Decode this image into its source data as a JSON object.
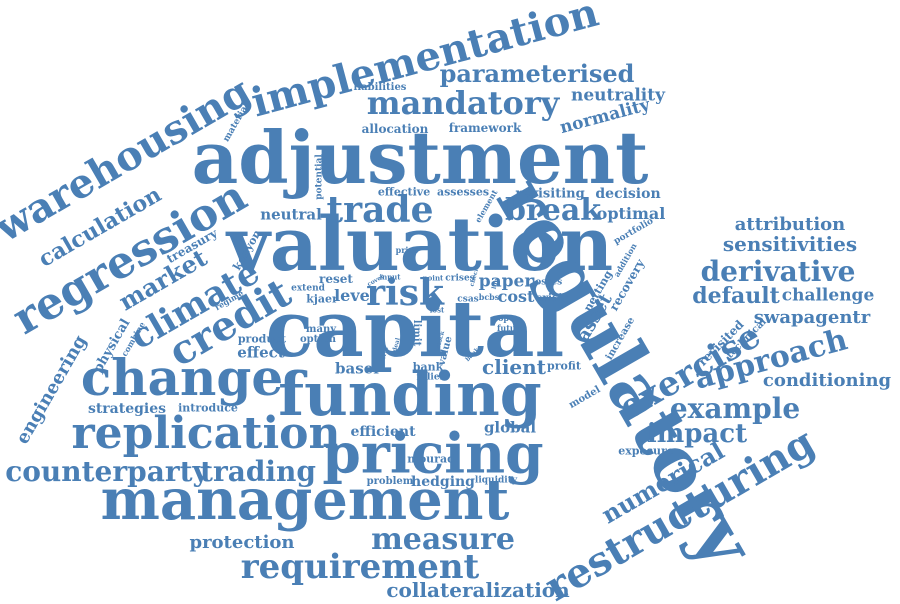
{
  "theme": {
    "word_color": "#4a7fb5",
    "background": "#ffffff"
  },
  "words": {
    "adjustment": "adjustment",
    "valuation": "valuation",
    "capital": "capital",
    "regulatory": "regulatory",
    "funding": "funding",
    "management": "management",
    "pricing": "pricing",
    "change": "change",
    "replication": "replication",
    "regression": "regression",
    "warehousing": "warehousing",
    "implementation": "implementation",
    "restructuring": "restructuring",
    "credit": "credit",
    "trade": "trade",
    "mandatory": "mandatory",
    "counterparty": "counterparty",
    "trading": "trading",
    "requirement": "requirement",
    "parameterised": "parameterised",
    "climate": "climate",
    "risk": "risk",
    "break": "break",
    "measure": "measure",
    "derivative": "derivative",
    "approach": "approach",
    "exercise": "exercise",
    "example": "example",
    "numerical": "numerical",
    "impact": "impact",
    "calculation": "calculation",
    "market": "market",
    "conditioning": "conditioning",
    "collateralization": "collateralization",
    "default": "default",
    "sensitivities": "sensitivities",
    "attribution": "attribution",
    "neutrality": "neutrality",
    "normality": "normality",
    "challenge": "challenge",
    "swapagentr": "swapagentr",
    "engineering": "engineering",
    "protection": "protection",
    "strategies": "strategies",
    "hedging": "hedging",
    "effect": "effect",
    "neutral": "neutral",
    "level": "level",
    "paper": "paper",
    "cost": "cost",
    "client": "client",
    "efficient": "efficient",
    "global": "global",
    "basel": "basel",
    "asset": "asset",
    "revisiting": "revisiting",
    "decision": "decision",
    "optimal": "optimal",
    "allocation": "allocation",
    "framework": "framework",
    "effective": "effective",
    "assesses": "assesses",
    "physical": "physical",
    "treasury": "treasury",
    "kenyon": "kenyon",
    "reset": "reset",
    "kjaer": "kjaer",
    "crisis": "crisis",
    "product": "product",
    "option": "option",
    "many": "many",
    "introduce": "introduce",
    "mourad": "mourad",
    "problem": "problem",
    "liquidity": "liquidity",
    "exposure": "exposure",
    "bank": "bank",
    "profit": "profit",
    "technical": "technical",
    "revisited": "revisited",
    "recovery": "recovery",
    "netting": "netting",
    "increase": "increase",
    "model": "model",
    "liabilities": "liabilities",
    "material": "material",
    "potential": "potential",
    "extend": "extend",
    "combine": "combine",
    "regime": "regime",
    "limit": "limit",
    "losses": "losses",
    "relief": "relief",
    "value": "value",
    "future": "future",
    "open": "open",
    "csas": "csas",
    "bcbs": "bcbs",
    "crises": "crises",
    "addition": "addition",
    "portfolio": "portfolio",
    "price": "price",
    "element": "element",
    "input": "input",
    "point": "point",
    "cover": "cover",
    "lost": "lost",
    "term": "term",
    "deal": "deal",
    "bank_small": "bank",
    "check": "check",
    "life": "life",
    "clock": "clock"
  }
}
